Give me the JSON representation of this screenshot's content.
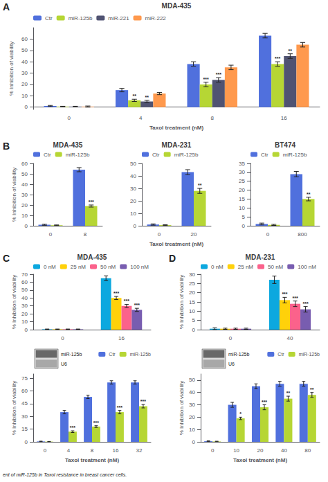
{
  "chart_data": [
    {
      "type": "bar",
      "title": "MDA-435",
      "xlabel": "Taxol treatment (nM)",
      "ylabel": "% Inhibition of viability",
      "categories": [
        "0",
        "4",
        "8",
        "16"
      ],
      "series": [
        {
          "name": "Ctr",
          "values": [
            1,
            15,
            38,
            63
          ],
          "errors": [
            0.5,
            1.5,
            2,
            2
          ]
        },
        {
          "name": "miR-125b",
          "values": [
            0.5,
            6,
            20,
            38
          ],
          "errors": [
            0.3,
            1,
            2,
            2
          ]
        },
        {
          "name": "miR-221",
          "values": [
            0.5,
            5,
            24,
            45
          ],
          "errors": [
            0.3,
            1,
            2,
            2
          ]
        },
        {
          "name": "miR-222",
          "values": [
            0.5,
            12,
            35,
            55
          ],
          "errors": [
            0.5,
            1,
            2,
            2
          ]
        }
      ],
      "ylim": [
        -2,
        70
      ],
      "yticks": [
        0,
        10,
        20,
        30,
        40,
        50,
        60
      ],
      "grid": false,
      "legend": "upper left",
      "annotations": [
        {
          "text": "**",
          "series": "miR-125b",
          "category": "4"
        },
        {
          "text": "**",
          "series": "miR-221",
          "category": "4"
        },
        {
          "text": "***",
          "series": "miR-125b",
          "category": "8"
        },
        {
          "text": "***",
          "series": "miR-221",
          "category": "8"
        },
        {
          "text": "***",
          "series": "miR-125b",
          "category": "16"
        },
        {
          "text": "**",
          "series": "miR-221",
          "category": "16"
        },
        {
          "text": "A"
        }
      ]
    },
    {
      "type": "bar",
      "title": "MDA-435",
      "ylabel": "% Inhibition of viability",
      "categories": [
        "0",
        "8"
      ],
      "series": [
        {
          "name": "Ctr",
          "values": [
            1,
            54
          ],
          "errors": [
            0.5,
            2
          ]
        },
        {
          "name": "miR-125b",
          "values": [
            0.5,
            19
          ],
          "errors": [
            0.3,
            1
          ]
        }
      ],
      "ylim": [
        0,
        60
      ],
      "yticks": [
        0,
        10,
        20,
        30,
        40,
        50,
        60
      ],
      "grid": false,
      "legend": "upper left",
      "annotations": [
        {
          "text": "***",
          "series": "miR-125b",
          "category": "8"
        },
        {
          "text": "B"
        }
      ]
    },
    {
      "type": "bar",
      "title": "MDA-231",
      "xlabel": "Taxol treatment (nM)",
      "categories": [
        "0",
        "20"
      ],
      "series": [
        {
          "name": "Ctr",
          "values": [
            1,
            43
          ],
          "errors": [
            0.5,
            2
          ]
        },
        {
          "name": "miR-125b",
          "values": [
            0.5,
            28
          ],
          "errors": [
            0.3,
            2
          ]
        }
      ],
      "ylim": [
        0,
        50
      ],
      "yticks": [
        0,
        10,
        20,
        30,
        40,
        50
      ],
      "grid": false,
      "legend": "upper left",
      "annotations": [
        {
          "text": "**",
          "series": "miR-125b",
          "category": "20"
        }
      ]
    },
    {
      "type": "bar",
      "title": "BT474",
      "categories": [
        "0",
        "800"
      ],
      "series": [
        {
          "name": "Ctr",
          "values": [
            1,
            29
          ],
          "errors": [
            0.5,
            1.5
          ]
        },
        {
          "name": "miR-125b",
          "values": [
            0.5,
            15
          ],
          "errors": [
            0.3,
            1
          ]
        }
      ],
      "ylim": [
        0,
        35
      ],
      "yticks": [
        0,
        5,
        10,
        15,
        20,
        25,
        30,
        35
      ],
      "grid": false,
      "legend": "upper left",
      "annotations": [
        {
          "text": "**",
          "series": "miR-125b",
          "category": "800"
        }
      ]
    },
    {
      "type": "bar",
      "title": "MDA-435",
      "ylabel": "% Inhibition of viability",
      "categories": [
        "0",
        "16"
      ],
      "series": [
        {
          "name": "0 nM",
          "values": [
            0.5,
            65
          ],
          "errors": [
            0.3,
            3
          ]
        },
        {
          "name": "25 nM",
          "values": [
            0.5,
            40
          ],
          "errors": [
            0.3,
            2
          ]
        },
        {
          "name": "50 nM",
          "values": [
            0.5,
            30
          ],
          "errors": [
            0.3,
            2
          ]
        },
        {
          "name": "100 nM",
          "values": [
            0.5,
            25
          ],
          "errors": [
            0.3,
            2
          ]
        }
      ],
      "ylim": [
        0,
        70
      ],
      "yticks": [
        0,
        10,
        20,
        30,
        40,
        50,
        60,
        70
      ],
      "grid": false,
      "legend": "upper left",
      "annotations": [
        {
          "text": "***",
          "series": "25 nM",
          "category": "16"
        },
        {
          "text": "***",
          "series": "50 nM",
          "category": "16"
        },
        {
          "text": "***",
          "series": "100 nM",
          "category": "16"
        },
        {
          "text": "C"
        }
      ]
    },
    {
      "type": "bar",
      "title": "MDA-231",
      "ylabel": "% Inhibition of viability",
      "categories": [
        "0",
        "40"
      ],
      "series": [
        {
          "name": "0 nM",
          "values": [
            0.5,
            27
          ],
          "errors": [
            0.5,
            2
          ]
        },
        {
          "name": "25 nM",
          "values": [
            0.5,
            16
          ],
          "errors": [
            0.3,
            1.5
          ]
        },
        {
          "name": "50 nM",
          "values": [
            0.5,
            14
          ],
          "errors": [
            0.3,
            1.5
          ]
        },
        {
          "name": "100 nM",
          "values": [
            0.5,
            11
          ],
          "errors": [
            0.3,
            1.5
          ]
        }
      ],
      "ylim": [
        0,
        30
      ],
      "yticks": [
        0,
        5,
        10,
        15,
        20,
        25,
        30
      ],
      "grid": false,
      "legend": "upper left",
      "annotations": [
        {
          "text": "***",
          "series": "25 nM",
          "category": "40"
        },
        {
          "text": "***",
          "series": "50 nM",
          "category": "40"
        },
        {
          "text": "***",
          "series": "100 nM",
          "category": "40"
        },
        {
          "text": "D"
        }
      ]
    },
    {
      "type": "bar",
      "xlabel": "Taxol treatment (nM)",
      "ylabel": "% Inhibition of viability",
      "categories": [
        "0",
        "4",
        "8",
        "16",
        "32"
      ],
      "series": [
        {
          "name": "Ctr",
          "values": [
            0.5,
            35,
            53,
            70,
            70
          ],
          "errors": [
            0.3,
            2,
            2,
            2,
            2
          ]
        },
        {
          "name": "miR-125b",
          "values": [
            0.3,
            12,
            18,
            35,
            42
          ],
          "errors": [
            0.2,
            1,
            1,
            2,
            2
          ]
        }
      ],
      "ylim": [
        0,
        80
      ],
      "yticks": [
        0,
        15,
        30,
        45,
        60,
        75
      ],
      "grid": false,
      "legend": "upper right",
      "annotations": [
        {
          "text": "***",
          "series": "miR-125b",
          "category": "4"
        },
        {
          "text": "***",
          "series": "miR-125b",
          "category": "8"
        },
        {
          "text": "***",
          "series": "miR-125b",
          "category": "16"
        },
        {
          "text": "***",
          "series": "miR-125b",
          "category": "32"
        },
        {
          "text": "miR-125b"
        },
        {
          "text": "U6"
        }
      ]
    },
    {
      "type": "bar",
      "xlabel": "Taxol treatment (nM)",
      "ylabel": "% Inhibition of viability",
      "categories": [
        "0",
        "10",
        "20",
        "40",
        "80"
      ],
      "series": [
        {
          "name": "Ctr",
          "values": [
            0.5,
            30,
            45,
            47,
            47
          ],
          "errors": [
            0.3,
            2,
            2,
            2,
            2
          ]
        },
        {
          "name": "miR-125b",
          "values": [
            0.3,
            19,
            28,
            35,
            38
          ],
          "errors": [
            0.2,
            1,
            2,
            2,
            2
          ]
        }
      ],
      "ylim": [
        0,
        55
      ],
      "yticks": [
        0,
        10,
        20,
        30,
        40,
        50
      ],
      "grid": false,
      "legend": "upper right",
      "annotations": [
        {
          "text": "*",
          "series": "miR-125b",
          "category": "10"
        },
        {
          "text": "***",
          "series": "miR-125b",
          "category": "20"
        },
        {
          "text": "**",
          "series": "miR-125b",
          "category": "40"
        },
        {
          "text": "**",
          "series": "miR-125b",
          "category": "80"
        },
        {
          "text": "miR-125b"
        },
        {
          "text": "U6"
        },
        {
          "text": "ent of miR-125b in Taxol resistance in breast cancer cells."
        }
      ]
    }
  ]
}
